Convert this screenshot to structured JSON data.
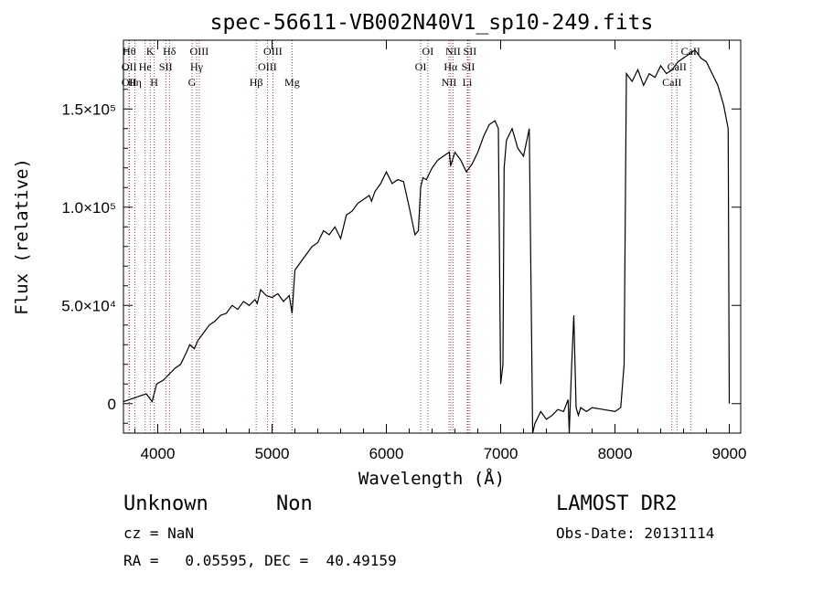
{
  "chart_data": {
    "type": "line",
    "title": "spec-56611-VB002N40V1_sp10-249.fits",
    "xlabel": "Wavelength (Å)",
    "ylabel": "Flux (relative)",
    "xlim": [
      3700,
      9100
    ],
    "ylim": [
      -15000,
      185000
    ],
    "x_ticks": [
      4000,
      5000,
      6000,
      7000,
      8000,
      9000
    ],
    "y_ticks": [
      {
        "value": 0,
        "label": "0"
      },
      {
        "value": 50000,
        "label": "5.0×10⁴"
      },
      {
        "value": 100000,
        "label": "1.0×10⁵"
      },
      {
        "value": 150000,
        "label": "1.5×10⁵"
      }
    ],
    "grid": false,
    "series": [
      {
        "color": "#000000",
        "x": [
          3700,
          3750,
          3800,
          3850,
          3900,
          3950,
          3990,
          4050,
          4100,
          4150,
          4200,
          4250,
          4280,
          4320,
          4350,
          4400,
          4450,
          4500,
          4550,
          4600,
          4650,
          4700,
          4750,
          4800,
          4850,
          4870,
          4900,
          4950,
          5000,
          5050,
          5100,
          5150,
          5175,
          5200,
          5250,
          5300,
          5350,
          5400,
          5450,
          5500,
          5550,
          5600,
          5650,
          5700,
          5750,
          5800,
          5850,
          5870,
          5900,
          5950,
          6000,
          6050,
          6100,
          6150,
          6200,
          6250,
          6280,
          6300,
          6320,
          6350,
          6400,
          6450,
          6500,
          6550,
          6562,
          6600,
          6650,
          6700,
          6750,
          6800,
          6850,
          6900,
          6950,
          6980,
          7000,
          7020,
          7030,
          7050,
          7100,
          7150,
          7200,
          7250,
          7280,
          7300,
          7350,
          7400,
          7450,
          7500,
          7550,
          7590,
          7600,
          7620,
          7640,
          7660,
          7680,
          7700,
          7750,
          7800,
          7900,
          8000,
          8050,
          8080,
          8100,
          8150,
          8200,
          8250,
          8300,
          8350,
          8400,
          8450,
          8500,
          8550,
          8600,
          8650,
          8700,
          8750,
          8800,
          8850,
          8900,
          8950,
          8990,
          9000
        ],
        "y": [
          1000,
          2000,
          3000,
          4000,
          5000,
          1000,
          10000,
          12000,
          15000,
          18000,
          20000,
          26000,
          30000,
          28000,
          32000,
          36000,
          40000,
          42000,
          45000,
          46000,
          50000,
          48000,
          52000,
          50000,
          53000,
          51000,
          58000,
          55000,
          54000,
          56000,
          52000,
          55000,
          46000,
          68000,
          72000,
          76000,
          80000,
          82000,
          88000,
          86000,
          90000,
          84000,
          96000,
          98000,
          102000,
          104000,
          106000,
          103000,
          108000,
          112000,
          118000,
          112000,
          114000,
          113000,
          100000,
          86000,
          88000,
          110000,
          115000,
          114000,
          120000,
          124000,
          126000,
          128000,
          121000,
          128000,
          124000,
          118000,
          122000,
          128000,
          136000,
          142000,
          144000,
          140000,
          10000,
          20000,
          120000,
          134000,
          140000,
          130000,
          126000,
          140000,
          -15000,
          -10000,
          -4000,
          -8000,
          -6000,
          -3000,
          -4000,
          2000,
          -15000,
          18000,
          45000,
          -2000,
          -6000,
          -2000,
          -4000,
          -2000,
          -3000,
          -4000,
          -2000,
          20000,
          168000,
          164000,
          170000,
          162000,
          168000,
          166000,
          172000,
          168000,
          170000,
          174000,
          176000,
          178000,
          180000,
          176000,
          174000,
          168000,
          162000,
          152000,
          140000,
          0
        ]
      }
    ],
    "lines": [
      {
        "x": 3750,
        "label": "Hθ",
        "row": 1
      },
      {
        "x": 3750,
        "label": "OII",
        "row": 2
      },
      {
        "x": 3750,
        "label": "OII",
        "row": 3
      },
      {
        "x": 3800,
        "label": "Hη",
        "row": 3
      },
      {
        "x": 3890,
        "label": "He",
        "row": 2
      },
      {
        "x": 3934,
        "label": "K",
        "row": 1
      },
      {
        "x": 3969,
        "label": "H",
        "row": 3
      },
      {
        "x": 4070,
        "label": "SII",
        "row": 2
      },
      {
        "x": 4102,
        "label": "Hδ",
        "row": 1
      },
      {
        "x": 4300,
        "label": "G",
        "row": 3
      },
      {
        "x": 4340,
        "label": "Hγ",
        "row": 2
      },
      {
        "x": 4363,
        "label": "OIII",
        "row": 1
      },
      {
        "x": 4861,
        "label": "Hβ",
        "row": 3
      },
      {
        "x": 4959,
        "label": "OIII",
        "row": 2
      },
      {
        "x": 5007,
        "label": "OIII",
        "row": 1
      },
      {
        "x": 5175,
        "label": "Mg",
        "row": 3
      },
      {
        "x": 6300,
        "label": "OI",
        "row": 2
      },
      {
        "x": 6363,
        "label": "OI",
        "row": 1
      },
      {
        "x": 6548,
        "label": "NII",
        "row": 3
      },
      {
        "x": 6563,
        "label": "Hα",
        "row": 2
      },
      {
        "x": 6583,
        "label": "NII",
        "row": 1
      },
      {
        "x": 6708,
        "label": "Li",
        "row": 3
      },
      {
        "x": 6716,
        "label": "SII",
        "row": 2
      },
      {
        "x": 6731,
        "label": "SII",
        "row": 1
      },
      {
        "x": 8498,
        "label": "CaII",
        "row": 3
      },
      {
        "x": 8542,
        "label": "CaII",
        "row": 2
      },
      {
        "x": 8662,
        "label": "CaII",
        "row": 1
      }
    ]
  },
  "footer": {
    "class_label": "Unknown",
    "subclass_label": "Non",
    "survey": "LAMOST DR2",
    "cz": "cz = NaN",
    "obs_date": "Obs-Date: 20131114",
    "coords": "RA =   0.05595, DEC =  40.49159"
  }
}
